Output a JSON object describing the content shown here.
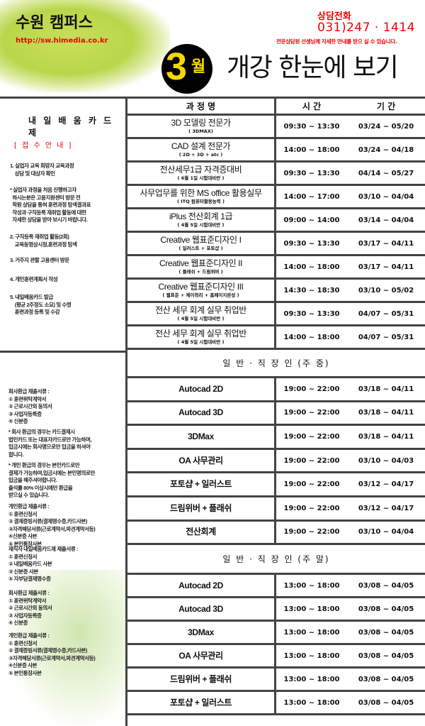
{
  "header": {
    "brand": "수원 캠퍼스",
    "url": "http://sw.himedia.co.kr",
    "phone_label": "상담전화",
    "phone": "031)247 · 1414",
    "phone_note": "전문상담원 선생님께 자세한 안내를 받으 실 수 있습니다.",
    "month_number": "3",
    "month_unit": "월",
    "headline": "개강 한눈에 보기",
    "badge_color": "#f5d800"
  },
  "left": {
    "card_title": "내 일 배 움 카 드 제",
    "receipt_title": "[ 접 수 안 내 ]",
    "steps": [
      "1. 실업자 교육 희망자 교육과정\n    상담 및 대상자 확인",
      "* 실업자 과정을 처음 진행하고자\n  하시는분은 고용지원센터 방문 전\n  학원 상담을 통혀 훈련과정 탐색결과표\n  작성과 구직등록 재취업 활동에 대한\n  자세한 상담을 받아 보시기 바랍니다.",
      "2. 구직등록 재취업 활동(2회)\n    교육동영상시청,훈련과정 탐색",
      "3. 거주지 관할 고용센터 방문",
      "4. 개인훈련계획서 작성",
      "5. 내일배움카드 발급\n    (평균 2주정도 소요) 및 수령\n    훈련과정 등록 및 수강"
    ],
    "docs": [
      "회사환급 제출서류 :\n① 훈련위탁계약서\n② 근로시간외 동의서\n③ 사업자등록증\n④ 신분증",
      "* 회사 환급의 경우는 카드결제시\n법인카드 또는 대표자카드로만 가능하며,\n입금시에는 회사명으로만 입금을 하셔야\n합니다.",
      "* 개인 환급의 경우는 본인카드로만\n결제가 가능하며,입금시에는 본인명의로만\n입금을 해주셔야합니다.\n출석률 80% 이상시에만 환급을\n받으실 수 있습니다.",
      "개인환급 제출서류 :\n① 훈련신청서\n② 결제증빙서류(결제영수증,카드사본)\n③자격해당서류(근로계약서,파견계약서등)\n④신분증 사본\n⑤ 본인통장사본",
      "재직자 내일배움카드제 제출서류 :\n① 훈련신청서\n② 내일배움카드 사본\n③ 신분증 사본\n⑤ 자부담결제영수증",
      "회사환급 제출서류 :\n① 훈련위탁계약서\n② 근로시간외 동의서\n③ 사업자등록증\n④ 신분증",
      "개인환급 제출서류 :\n① 훈련신청서\n② 결제증빙서류(결제영수증,카드사본)\n③자격해당서류(근로계약서,파견계약서등)\n④신분증 사본\n⑤ 본인통장사본"
    ]
  },
  "table": {
    "headers": [
      "과 정 명",
      "시 간",
      "기 간"
    ],
    "courses": [
      {
        "name": "3D 모델링 전문가",
        "sub": "( 3DMAX)",
        "time": "09:30 ~ 13:30",
        "period": "03/24 ~ 05/20"
      },
      {
        "name": "CAD 설계 전문가",
        "sub": "( 2D + 3D + atc )",
        "time": "14:00 ~ 18:00",
        "period": "03/24 ~ 04/18"
      },
      {
        "name": "전산세무1급 자격증대비",
        "sub": "( 6월 1일 시험대비반 )",
        "time": "09:30 ~ 13:30",
        "period": "04/14 ~ 05/27"
      },
      {
        "name": "사무업무를 위한 MS office 활용실무",
        "sub": "( ITQ 컴퓨터활용능력 )",
        "time": "14:00 ~ 17:00",
        "period": "03/10 ~ 04/04"
      },
      {
        "name": "iPlus 전산회계 1급",
        "sub": "( 4월 5일 시험대비반 )",
        "time": "09:00 ~ 14:00",
        "period": "03/14 ~ 04/04"
      },
      {
        "name": "Creative 웹표준디자인 I",
        "sub": "( 일러스트 + 포토샵 )",
        "time": "09:30 ~ 13:30",
        "period": "03/17 ~ 04/11"
      },
      {
        "name": "Creative 웹표준디자인 II",
        "sub": "( 플래쉬 + 드림위버 )",
        "time": "14:00 ~ 18:00",
        "period": "03/17 ~ 04/11"
      },
      {
        "name": "Creative 웹표준디자인 III",
        "sub": "( 웹표준 + 제이쿼리 + 홈페이지완성 )",
        "time": "14:30 ~ 18:30",
        "period": "03/10 ~ 05/02"
      },
      {
        "name": "전산 세무 회계 실무 취업반",
        "sub": "( 4월 5일 시험대비반 )",
        "time": "09:30 ~ 13:30",
        "period": "04/07 ~ 05/31"
      },
      {
        "name": "전산 세무 회계 실무 취업반",
        "sub": "( 4월 5일 시험대비반 )",
        "time": "14:00 ~ 18:00",
        "period": "04/07 ~ 05/31"
      }
    ],
    "weekday_title": "일 반 · 직 장 인  (주 중)",
    "weekday": [
      {
        "name": "Autocad 2D",
        "time": "19:00 ~ 22:00",
        "period": "03/18 ~ 04/11"
      },
      {
        "name": "Autocad 3D",
        "time": "19:00 ~ 22:00",
        "period": "03/18 ~ 04/11"
      },
      {
        "name": "3DMax",
        "time": "19:00 ~ 22:00",
        "period": "03/18 ~ 04/11"
      },
      {
        "name": "OA 사무관리",
        "time": "19:00 ~ 22:00",
        "period": "03/10 ~ 04/03"
      },
      {
        "name": "포토샵 + 일러스트",
        "time": "19:00 ~ 22:00",
        "period": "03/12 ~ 04/17"
      },
      {
        "name": "드림위버 + 플래쉬",
        "time": "19:00 ~ 22:00",
        "period": "03/12 ~ 04/17"
      },
      {
        "name": "전산회계",
        "time": "19:00 ~ 22:00",
        "period": "03/10 ~ 04/04"
      }
    ],
    "weekend_title": "일 반 · 직 장 인  (주 말)",
    "weekend": [
      {
        "name": "Autocad 2D",
        "time": "13:00 ~ 18:00",
        "period": "03/08 ~ 04/05"
      },
      {
        "name": "Autocad 3D",
        "time": "13:00 ~ 18:00",
        "period": "03/08 ~ 04/05"
      },
      {
        "name": "3DMax",
        "time": "13:00 ~ 18:00",
        "period": "03/08 ~ 04/05"
      },
      {
        "name": "OA 사무관리",
        "time": "13:00 ~ 18:00",
        "period": "03/08 ~ 04/05"
      },
      {
        "name": "드림위버 + 플래쉬",
        "time": "13:00 ~ 18:00",
        "period": "03/08 ~ 04/05"
      },
      {
        "name": "포토샵 + 일러스트",
        "time": "13:00 ~ 18:00",
        "period": "03/08 ~ 04/05"
      }
    ]
  }
}
